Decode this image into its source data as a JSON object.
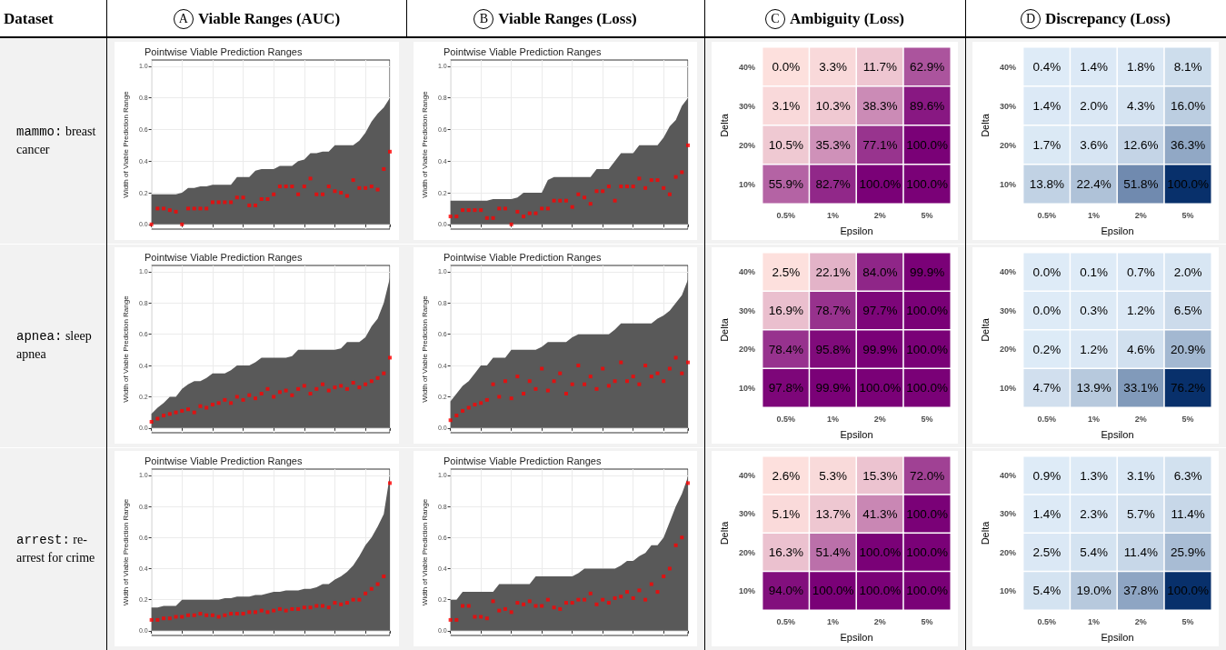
{
  "chart_data": [
    {
      "type": "other",
      "annotations": [
        "Dataset",
        "A",
        "Viable Ranges (AUC)",
        "B",
        "Viable Ranges (Loss)",
        "C",
        "Ambiguity (Loss)",
        "D",
        "Discrepancy (Loss)",
        "mammo:",
        "breast cancer",
        "apnea:",
        "sleep apnea",
        "arrest:",
        "re-arrest for crime"
      ]
    },
    {
      "type": "area",
      "title": "Pointwise Viable Prediction Ranges",
      "ylabel": "Width of Viable Prediction Range",
      "categories": [
        null,
        null,
        null,
        null,
        null,
        null,
        null,
        null,
        null,
        null,
        null,
        null,
        null,
        null,
        null,
        null,
        null,
        null,
        null,
        null,
        null,
        null,
        null,
        null,
        null,
        null,
        null,
        null,
        null,
        null,
        null,
        null,
        null,
        null,
        null,
        null,
        null,
        null,
        null,
        null
      ],
      "ylim": [
        -0.03,
        1.04
      ],
      "yticks": [
        {
          "value": 0,
          "label": "0.0"
        },
        {
          "value": 0.2,
          "label": "0.2"
        },
        {
          "value": 0.4,
          "label": "0.4"
        },
        {
          "value": 0.6,
          "label": "0.6"
        },
        {
          "value": 0.8,
          "label": "0.8"
        },
        {
          "value": 1,
          "label": "1.0"
        }
      ],
      "grid": true,
      "tick_labels": "y",
      "series": [
        {
          "type": "area",
          "color": "#595959",
          "values": [
            0.19,
            0.19,
            0.19,
            0.19,
            0.19,
            0.2,
            0.23,
            0.23,
            0.24,
            0.24,
            0.25,
            0.25,
            0.25,
            0.25,
            0.3,
            0.3,
            0.3,
            0.34,
            0.35,
            0.35,
            0.35,
            0.37,
            0.37,
            0.37,
            0.4,
            0.41,
            0.45,
            0.45,
            0.46,
            0.46,
            0.5,
            0.5,
            0.5,
            0.5,
            0.53,
            0.58,
            0.65,
            0.7,
            0.74,
            0.8
          ]
        },
        {
          "type": "scatter",
          "marker": "square",
          "color": "#ff0000",
          "values": [
            0.0,
            0.1,
            0.1,
            0.09,
            0.08,
            0.0,
            0.1,
            0.1,
            0.1,
            0.1,
            0.14,
            0.14,
            0.14,
            0.14,
            0.17,
            0.17,
            0.12,
            0.12,
            0.16,
            0.16,
            0.19,
            0.24,
            0.24,
            0.24,
            0.19,
            0.24,
            0.29,
            0.19,
            0.19,
            0.24,
            0.21,
            0.2,
            0.18,
            0.28,
            0.23,
            0.23,
            0.24,
            0.22,
            0.35,
            0.46
          ]
        }
      ]
    },
    {
      "type": "area",
      "title": "Pointwise Viable Prediction Ranges",
      "ylabel": "Width of Viable Prediction Range",
      "categories": [
        null,
        null,
        null,
        null,
        null,
        null,
        null,
        null,
        null,
        null,
        null,
        null,
        null,
        null,
        null,
        null,
        null,
        null,
        null,
        null,
        null,
        null,
        null,
        null,
        null,
        null,
        null,
        null,
        null,
        null,
        null,
        null,
        null,
        null,
        null,
        null,
        null,
        null,
        null,
        null
      ],
      "ylim": [
        -0.03,
        1.04
      ],
      "yticks": [
        {
          "value": 0,
          "label": "0.0"
        },
        {
          "value": 0.2,
          "label": "0.2"
        },
        {
          "value": 0.4,
          "label": "0.4"
        },
        {
          "value": 0.6,
          "label": "0.6"
        },
        {
          "value": 0.8,
          "label": "0.8"
        },
        {
          "value": 1,
          "label": "1.0"
        }
      ],
      "grid": true,
      "tick_labels": "y",
      "series": [
        {
          "type": "area",
          "color": "#595959",
          "values": [
            0.15,
            0.15,
            0.15,
            0.15,
            0.15,
            0.15,
            0.15,
            0.16,
            0.16,
            0.16,
            0.16,
            0.17,
            0.2,
            0.2,
            0.2,
            0.2,
            0.28,
            0.3,
            0.3,
            0.3,
            0.3,
            0.3,
            0.3,
            0.3,
            0.35,
            0.35,
            0.35,
            0.4,
            0.45,
            0.45,
            0.45,
            0.5,
            0.5,
            0.5,
            0.5,
            0.55,
            0.62,
            0.66,
            0.75,
            0.8
          ]
        },
        {
          "type": "scatter",
          "marker": "square",
          "color": "#ff0000",
          "values": [
            0.05,
            0.05,
            0.09,
            0.09,
            0.09,
            0.09,
            0.04,
            0.04,
            0.1,
            0.1,
            0.0,
            0.08,
            0.05,
            0.07,
            0.07,
            0.1,
            0.1,
            0.15,
            0.15,
            0.15,
            0.11,
            0.19,
            0.17,
            0.13,
            0.21,
            0.21,
            0.24,
            0.15,
            0.24,
            0.24,
            0.24,
            0.29,
            0.23,
            0.28,
            0.28,
            0.23,
            0.19,
            0.3,
            0.33,
            0.5
          ]
        }
      ]
    },
    {
      "type": "heatmap",
      "xlabel": "Epsilon",
      "ylabel": "Delta",
      "categories": [
        "0.5%",
        "1%",
        "2%",
        "5%"
      ],
      "y_categories": [
        "40%",
        "30%",
        "20%",
        "10%"
      ],
      "colors": [
        "#fde0dd",
        "#7a0177"
      ],
      "cells": [
        [
          0.0,
          3.3,
          11.7,
          62.9
        ],
        [
          3.1,
          10.3,
          38.3,
          89.6
        ],
        [
          10.5,
          35.3,
          77.1,
          100.0
        ],
        [
          55.9,
          82.7,
          100.0,
          100.0
        ]
      ],
      "cell_labels": [
        [
          "0.0%",
          "3.3%",
          "11.7%",
          "62.9%"
        ],
        [
          "3.1%",
          "10.3%",
          "38.3%",
          "89.6%"
        ],
        [
          "10.5%",
          "35.3%",
          "77.1%",
          "100.0%"
        ],
        [
          "55.9%",
          "82.7%",
          "100.0%",
          "100.0%"
        ]
      ]
    },
    {
      "type": "heatmap",
      "xlabel": "Epsilon",
      "ylabel": "Delta",
      "categories": [
        "0.5%",
        "1%",
        "2%",
        "5%"
      ],
      "y_categories": [
        "40%",
        "30%",
        "20%",
        "10%"
      ],
      "colors": [
        "#deebf7",
        "#08306b"
      ],
      "cells": [
        [
          0.4,
          1.4,
          1.8,
          8.1
        ],
        [
          1.4,
          2.0,
          4.3,
          16.0
        ],
        [
          1.7,
          3.6,
          12.6,
          36.3
        ],
        [
          13.8,
          22.4,
          51.8,
          100.0
        ]
      ],
      "cell_labels": [
        [
          "0.4%",
          "1.4%",
          "1.8%",
          "8.1%"
        ],
        [
          "1.4%",
          "2.0%",
          "4.3%",
          "16.0%"
        ],
        [
          "1.7%",
          "3.6%",
          "12.6%",
          "36.3%"
        ],
        [
          "13.8%",
          "22.4%",
          "51.8%",
          "100.0%"
        ]
      ]
    },
    {
      "type": "area",
      "title": "Pointwise Viable Prediction Ranges",
      "ylabel": "Width of Viable Prediction Range",
      "categories": [
        null,
        null,
        null,
        null,
        null,
        null,
        null,
        null,
        null,
        null,
        null,
        null,
        null,
        null,
        null,
        null,
        null,
        null,
        null,
        null,
        null,
        null,
        null,
        null,
        null,
        null,
        null,
        null,
        null,
        null,
        null,
        null,
        null,
        null,
        null,
        null,
        null,
        null,
        null,
        null
      ],
      "ylim": [
        -0.03,
        1.04
      ],
      "yticks": [
        {
          "value": 0,
          "label": "0.0"
        },
        {
          "value": 0.2,
          "label": "0.2"
        },
        {
          "value": 0.4,
          "label": "0.4"
        },
        {
          "value": 0.6,
          "label": "0.6"
        },
        {
          "value": 0.8,
          "label": "0.8"
        },
        {
          "value": 1,
          "label": "1.0"
        }
      ],
      "grid": true,
      "tick_labels": "y",
      "series": [
        {
          "type": "area",
          "color": "#595959",
          "values": [
            0.09,
            0.13,
            0.16,
            0.2,
            0.2,
            0.25,
            0.28,
            0.3,
            0.3,
            0.32,
            0.35,
            0.35,
            0.35,
            0.37,
            0.4,
            0.4,
            0.4,
            0.42,
            0.45,
            0.45,
            0.45,
            0.45,
            0.45,
            0.46,
            0.5,
            0.5,
            0.5,
            0.5,
            0.5,
            0.5,
            0.5,
            0.51,
            0.55,
            0.55,
            0.55,
            0.58,
            0.65,
            0.7,
            0.8,
            0.96
          ]
        },
        {
          "type": "scatter",
          "marker": "square",
          "color": "#ff0000",
          "values": [
            0.04,
            0.06,
            0.08,
            0.09,
            0.1,
            0.11,
            0.12,
            0.1,
            0.14,
            0.13,
            0.15,
            0.16,
            0.18,
            0.16,
            0.2,
            0.18,
            0.21,
            0.19,
            0.22,
            0.25,
            0.2,
            0.23,
            0.24,
            0.21,
            0.25,
            0.27,
            0.22,
            0.25,
            0.28,
            0.24,
            0.26,
            0.27,
            0.25,
            0.29,
            0.26,
            0.28,
            0.3,
            0.32,
            0.35,
            0.45
          ]
        }
      ]
    },
    {
      "type": "area",
      "title": "Pointwise Viable Prediction Ranges",
      "ylabel": "Width of Viable Prediction Range",
      "categories": [
        null,
        null,
        null,
        null,
        null,
        null,
        null,
        null,
        null,
        null,
        null,
        null,
        null,
        null,
        null,
        null,
        null,
        null,
        null,
        null,
        null,
        null,
        null,
        null,
        null,
        null,
        null,
        null,
        null,
        null,
        null,
        null,
        null,
        null,
        null,
        null,
        null,
        null,
        null,
        null
      ],
      "ylim": [
        -0.03,
        1.04
      ],
      "yticks": [
        {
          "value": 0,
          "label": "0.0"
        },
        {
          "value": 0.2,
          "label": "0.2"
        },
        {
          "value": 0.4,
          "label": "0.4"
        },
        {
          "value": 0.6,
          "label": "0.6"
        },
        {
          "value": 0.8,
          "label": "0.8"
        },
        {
          "value": 1,
          "label": "1.0"
        }
      ],
      "grid": true,
      "tick_labels": "y",
      "series": [
        {
          "type": "area",
          "color": "#595959",
          "values": [
            0.17,
            0.22,
            0.27,
            0.3,
            0.35,
            0.4,
            0.4,
            0.45,
            0.45,
            0.45,
            0.5,
            0.5,
            0.5,
            0.5,
            0.5,
            0.52,
            0.55,
            0.55,
            0.55,
            0.55,
            0.58,
            0.6,
            0.6,
            0.6,
            0.6,
            0.6,
            0.6,
            0.63,
            0.67,
            0.67,
            0.67,
            0.67,
            0.67,
            0.67,
            0.7,
            0.72,
            0.75,
            0.8,
            0.85,
            0.95
          ]
        },
        {
          "type": "scatter",
          "marker": "square",
          "color": "#ff0000",
          "values": [
            0.05,
            0.08,
            0.11,
            0.13,
            0.15,
            0.16,
            0.18,
            0.28,
            0.2,
            0.3,
            0.19,
            0.33,
            0.22,
            0.3,
            0.25,
            0.38,
            0.24,
            0.3,
            0.35,
            0.22,
            0.28,
            0.4,
            0.28,
            0.33,
            0.25,
            0.38,
            0.27,
            0.3,
            0.42,
            0.3,
            0.33,
            0.28,
            0.4,
            0.33,
            0.35,
            0.3,
            0.38,
            0.45,
            0.35,
            0.42
          ]
        }
      ]
    },
    {
      "type": "heatmap",
      "xlabel": "Epsilon",
      "ylabel": "Delta",
      "categories": [
        "0.5%",
        "1%",
        "2%",
        "5%"
      ],
      "y_categories": [
        "40%",
        "30%",
        "20%",
        "10%"
      ],
      "colors": [
        "#fde0dd",
        "#7a0177"
      ],
      "cells": [
        [
          2.5,
          22.1,
          84.0,
          99.9
        ],
        [
          16.9,
          78.7,
          97.7,
          100.0
        ],
        [
          78.4,
          95.8,
          99.9,
          100.0
        ],
        [
          97.8,
          99.9,
          100.0,
          100.0
        ]
      ],
      "cell_labels": [
        [
          "2.5%",
          "22.1%",
          "84.0%",
          "99.9%"
        ],
        [
          "16.9%",
          "78.7%",
          "97.7%",
          "100.0%"
        ],
        [
          "78.4%",
          "95.8%",
          "99.9%",
          "100.0%"
        ],
        [
          "97.8%",
          "99.9%",
          "100.0%",
          "100.0%"
        ]
      ]
    },
    {
      "type": "heatmap",
      "xlabel": "Epsilon",
      "ylabel": "Delta",
      "categories": [
        "0.5%",
        "1%",
        "2%",
        "5%"
      ],
      "y_categories": [
        "40%",
        "30%",
        "20%",
        "10%"
      ],
      "colors": [
        "#deebf7",
        "#08306b"
      ],
      "cells": [
        [
          0.0,
          0.1,
          0.7,
          2.0
        ],
        [
          0.0,
          0.3,
          1.2,
          6.5
        ],
        [
          0.2,
          1.2,
          4.6,
          20.9
        ],
        [
          4.7,
          13.9,
          33.1,
          76.2
        ]
      ],
      "cell_labels": [
        [
          "0.0%",
          "0.1%",
          "0.7%",
          "2.0%"
        ],
        [
          "0.0%",
          "0.3%",
          "1.2%",
          "6.5%"
        ],
        [
          "0.2%",
          "1.2%",
          "4.6%",
          "20.9%"
        ],
        [
          "4.7%",
          "13.9%",
          "33.1%",
          "76.2%"
        ]
      ]
    },
    {
      "type": "area",
      "title": "Pointwise Viable Prediction Ranges",
      "ylabel": "Width of Viable Prediction Range",
      "categories": [
        null,
        null,
        null,
        null,
        null,
        null,
        null,
        null,
        null,
        null,
        null,
        null,
        null,
        null,
        null,
        null,
        null,
        null,
        null,
        null,
        null,
        null,
        null,
        null,
        null,
        null,
        null,
        null,
        null,
        null,
        null,
        null,
        null,
        null,
        null,
        null,
        null,
        null,
        null,
        null
      ],
      "ylim": [
        -0.03,
        1.04
      ],
      "yticks": [
        {
          "value": 0,
          "label": "0.0"
        },
        {
          "value": 0.2,
          "label": "0.2"
        },
        {
          "value": 0.4,
          "label": "0.4"
        },
        {
          "value": 0.6,
          "label": "0.6"
        },
        {
          "value": 0.8,
          "label": "0.8"
        },
        {
          "value": 1,
          "label": "1.0"
        }
      ],
      "grid": true,
      "tick_labels": "y",
      "series": [
        {
          "type": "area",
          "color": "#595959",
          "values": [
            0.15,
            0.15,
            0.16,
            0.16,
            0.16,
            0.2,
            0.2,
            0.2,
            0.2,
            0.2,
            0.2,
            0.2,
            0.21,
            0.21,
            0.22,
            0.22,
            0.22,
            0.23,
            0.23,
            0.24,
            0.25,
            0.25,
            0.26,
            0.26,
            0.26,
            0.27,
            0.27,
            0.28,
            0.3,
            0.3,
            0.33,
            0.35,
            0.38,
            0.42,
            0.48,
            0.55,
            0.6,
            0.67,
            0.75,
            1.0
          ]
        },
        {
          "type": "scatter",
          "marker": "square",
          "color": "#ff0000",
          "values": [
            0.07,
            0.07,
            0.08,
            0.08,
            0.09,
            0.09,
            0.1,
            0.1,
            0.11,
            0.1,
            0.1,
            0.09,
            0.1,
            0.11,
            0.11,
            0.11,
            0.12,
            0.12,
            0.13,
            0.12,
            0.13,
            0.14,
            0.13,
            0.14,
            0.14,
            0.15,
            0.15,
            0.16,
            0.16,
            0.15,
            0.18,
            0.17,
            0.18,
            0.2,
            0.2,
            0.24,
            0.27,
            0.3,
            0.35,
            0.95
          ]
        }
      ]
    },
    {
      "type": "area",
      "title": "Pointwise Viable Prediction Ranges",
      "ylabel": "Width of Viable Prediction Range",
      "categories": [
        null,
        null,
        null,
        null,
        null,
        null,
        null,
        null,
        null,
        null,
        null,
        null,
        null,
        null,
        null,
        null,
        null,
        null,
        null,
        null,
        null,
        null,
        null,
        null,
        null,
        null,
        null,
        null,
        null,
        null,
        null,
        null,
        null,
        null,
        null,
        null,
        null,
        null,
        null,
        null
      ],
      "ylim": [
        -0.03,
        1.04
      ],
      "yticks": [
        {
          "value": 0,
          "label": "0.0"
        },
        {
          "value": 0.2,
          "label": "0.2"
        },
        {
          "value": 0.4,
          "label": "0.4"
        },
        {
          "value": 0.6,
          "label": "0.6"
        },
        {
          "value": 0.8,
          "label": "0.8"
        },
        {
          "value": 1,
          "label": "1.0"
        }
      ],
      "grid": true,
      "tick_labels": "y",
      "series": [
        {
          "type": "area",
          "color": "#595959",
          "values": [
            0.2,
            0.2,
            0.25,
            0.25,
            0.25,
            0.25,
            0.25,
            0.25,
            0.3,
            0.3,
            0.3,
            0.3,
            0.3,
            0.3,
            0.35,
            0.35,
            0.35,
            0.35,
            0.35,
            0.35,
            0.35,
            0.37,
            0.4,
            0.4,
            0.4,
            0.4,
            0.4,
            0.4,
            0.42,
            0.45,
            0.45,
            0.48,
            0.5,
            0.55,
            0.55,
            0.6,
            0.7,
            0.8,
            0.88,
            0.99
          ]
        },
        {
          "type": "scatter",
          "marker": "square",
          "color": "#ff0000",
          "values": [
            0.07,
            0.07,
            0.16,
            0.16,
            0.09,
            0.09,
            0.08,
            0.19,
            0.13,
            0.14,
            0.12,
            0.18,
            0.17,
            0.19,
            0.16,
            0.16,
            0.2,
            0.15,
            0.14,
            0.18,
            0.18,
            0.2,
            0.2,
            0.24,
            0.17,
            0.2,
            0.18,
            0.21,
            0.22,
            0.25,
            0.21,
            0.26,
            0.2,
            0.3,
            0.25,
            0.35,
            0.4,
            0.55,
            0.6,
            0.95
          ]
        }
      ]
    },
    {
      "type": "heatmap",
      "xlabel": "Epsilon",
      "ylabel": "Delta",
      "categories": [
        "0.5%",
        "1%",
        "2%",
        "5%"
      ],
      "y_categories": [
        "40%",
        "30%",
        "20%",
        "10%"
      ],
      "colors": [
        "#fde0dd",
        "#7a0177"
      ],
      "cells": [
        [
          2.6,
          5.3,
          15.3,
          72.0
        ],
        [
          5.1,
          13.7,
          41.3,
          100.0
        ],
        [
          16.3,
          51.4,
          100.0,
          100.0
        ],
        [
          94.0,
          100.0,
          100.0,
          100.0
        ]
      ],
      "cell_labels": [
        [
          "2.6%",
          "5.3%",
          "15.3%",
          "72.0%"
        ],
        [
          "5.1%",
          "13.7%",
          "41.3%",
          "100.0%"
        ],
        [
          "16.3%",
          "51.4%",
          "100.0%",
          "100.0%"
        ],
        [
          "94.0%",
          "100.0%",
          "100.0%",
          "100.0%"
        ]
      ]
    },
    {
      "type": "heatmap",
      "xlabel": "Epsilon",
      "ylabel": "Delta",
      "categories": [
        "0.5%",
        "1%",
        "2%",
        "5%"
      ],
      "y_categories": [
        "40%",
        "30%",
        "20%",
        "10%"
      ],
      "colors": [
        "#deebf7",
        "#08306b"
      ],
      "cells": [
        [
          0.9,
          1.3,
          3.1,
          6.3
        ],
        [
          1.4,
          2.3,
          5.7,
          11.4
        ],
        [
          2.5,
          5.4,
          11.4,
          25.9
        ],
        [
          5.4,
          19.0,
          37.8,
          100.0
        ]
      ],
      "cell_labels": [
        [
          "0.9%",
          "1.3%",
          "3.1%",
          "6.3%"
        ],
        [
          "1.4%",
          "2.3%",
          "5.7%",
          "11.4%"
        ],
        [
          "2.5%",
          "5.4%",
          "11.4%",
          "25.9%"
        ],
        [
          "5.4%",
          "19.0%",
          "37.8%",
          "100.0%"
        ]
      ]
    }
  ]
}
